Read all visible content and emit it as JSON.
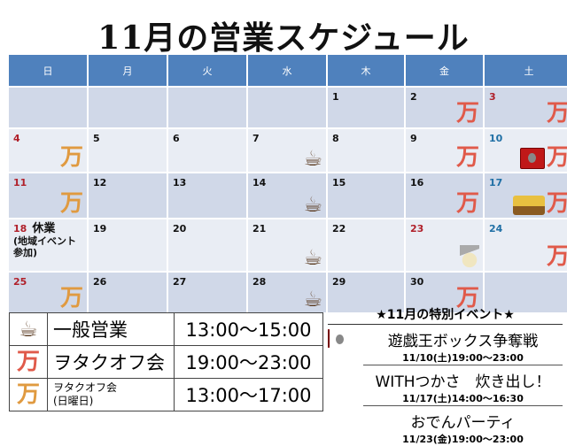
{
  "title": "11月の営業スケジュール",
  "weekdays": [
    "日",
    "月",
    "火",
    "水",
    "木",
    "金",
    "土"
  ],
  "colors": {
    "header": "#4f81bd",
    "row_dark": "#d0d8e8",
    "row_light": "#e9edf4",
    "holiday": "#b0202a",
    "saturday": "#1f6fa5"
  },
  "cells": [
    {
      "day": ""
    },
    {
      "day": ""
    },
    {
      "day": ""
    },
    {
      "day": ""
    },
    {
      "day": "1"
    },
    {
      "day": "2",
      "icons": [
        "man-red"
      ]
    },
    {
      "day": "3",
      "color": "red",
      "icons": [
        "man-red"
      ]
    },
    {
      "day": "4",
      "color": "red",
      "icons": [
        "man-orange"
      ]
    },
    {
      "day": "5"
    },
    {
      "day": "6"
    },
    {
      "day": "7",
      "icons": [
        "coffee"
      ]
    },
    {
      "day": "8"
    },
    {
      "day": "9",
      "icons": [
        "man-red"
      ]
    },
    {
      "day": "10",
      "color": "blue",
      "icons": [
        "cards",
        "man-red"
      ]
    },
    {
      "day": "11",
      "color": "red",
      "icons": [
        "man-orange"
      ]
    },
    {
      "day": "12"
    },
    {
      "day": "13"
    },
    {
      "day": "14",
      "icons": [
        "coffee"
      ]
    },
    {
      "day": "15"
    },
    {
      "day": "16",
      "icons": [
        "man-red"
      ]
    },
    {
      "day": "17",
      "color": "blue",
      "icons": [
        "pot",
        "man-red"
      ]
    },
    {
      "day": "18",
      "color": "red",
      "note": "休業",
      "note2": "(地域イベント参加)"
    },
    {
      "day": "19"
    },
    {
      "day": "20"
    },
    {
      "day": "21",
      "icons": [
        "coffee"
      ]
    },
    {
      "day": "22"
    },
    {
      "day": "23",
      "color": "red",
      "icons": [
        "oden"
      ]
    },
    {
      "day": "24",
      "color": "blue",
      "icons": [
        "man-red"
      ]
    },
    {
      "day": "25",
      "color": "red",
      "icons": [
        "man-orange"
      ]
    },
    {
      "day": "26"
    },
    {
      "day": "27"
    },
    {
      "day": "28",
      "icons": [
        "coffee"
      ]
    },
    {
      "day": "29"
    },
    {
      "day": "30",
      "icons": [
        "man-red"
      ]
    },
    {
      "day": ""
    }
  ],
  "legend": [
    {
      "icon": "coffee",
      "label": "一般営業",
      "time": "13:00〜15:00"
    },
    {
      "icon": "man-red",
      "label": "ヲタクオフ会",
      "time": "19:00〜23:00"
    },
    {
      "icon": "man-orange",
      "label": "ヲタクオフ会",
      "sub": "(日曜日)",
      "time": "13:00〜17:00"
    }
  ],
  "events": {
    "heading": "★11月の特別イベント★",
    "items": [
      {
        "icon": "cards",
        "name": "遊戯王ボックス争奪戦",
        "date": "11/10(土)19:00〜23:00"
      },
      {
        "icon": "pot",
        "name": "WITHつかさ　炊き出し！",
        "date": "11/17(土)14:00〜16:30"
      },
      {
        "icon": "oden",
        "name": "おでんパーティ",
        "date": "11/23(金)19:00〜23:00"
      }
    ]
  },
  "man_glyph": "万",
  "coffee_glyph": "☕"
}
